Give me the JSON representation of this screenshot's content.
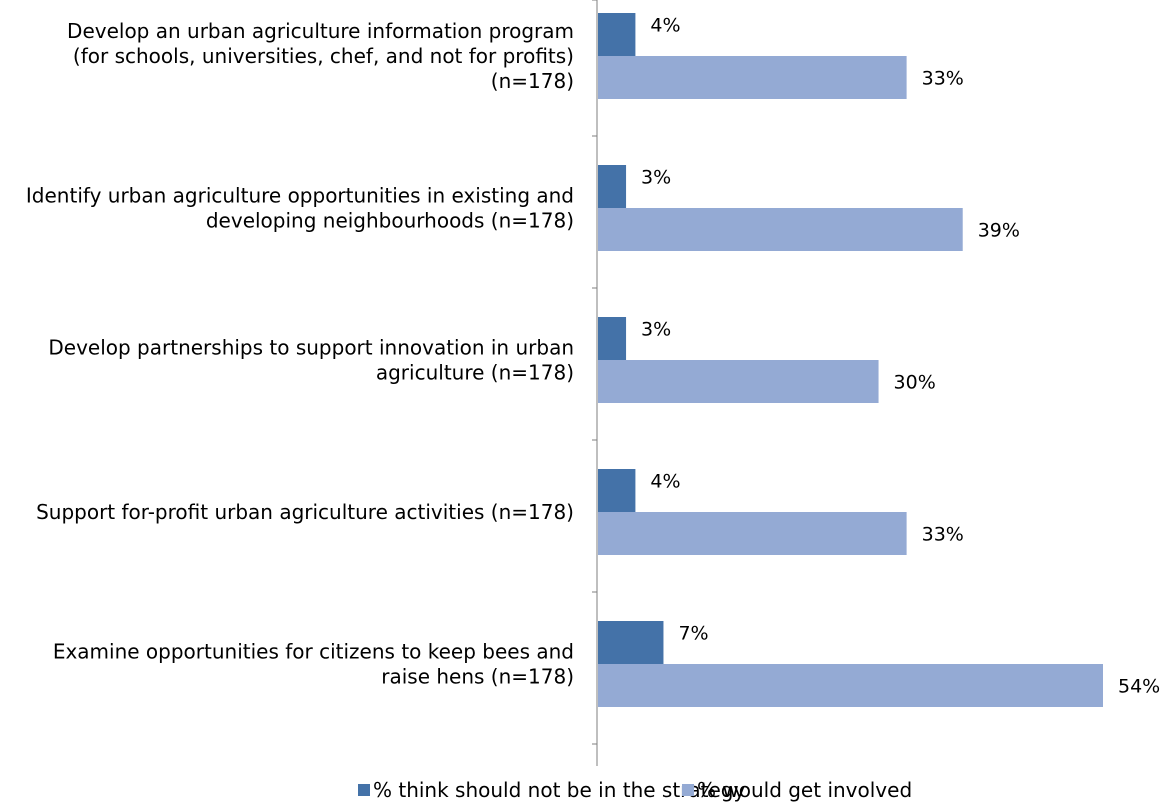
{
  "chart_data": {
    "type": "bar",
    "orientation": "horizontal",
    "categories": [
      [
        "Develop an urban agriculture information program",
        "(for schools, universities, chef, and not for profits)",
        "(n=178)"
      ],
      [
        "Identify urban agriculture opportunities in existing and",
        "developing neighbourhoods (n=178)"
      ],
      [
        "Develop partnerships to support innovation in urban",
        "agriculture (n=178)"
      ],
      [
        "Support for-profit urban agriculture activities (n=178)"
      ],
      [
        "Examine opportunities for citizens to keep bees and",
        "raise hens (n=178)"
      ]
    ],
    "series": [
      {
        "name": "% think should not be in the strategy",
        "color": "#4472a8",
        "values": [
          4,
          3,
          3,
          4,
          7
        ],
        "labels": [
          "4%",
          "3%",
          "3%",
          "4%",
          "7%"
        ]
      },
      {
        "name": "% would get involved",
        "color": "#94aad4",
        "values": [
          33,
          39,
          30,
          33,
          54
        ],
        "labels": [
          "33%",
          "39%",
          "30%",
          "33%",
          "54%"
        ]
      }
    ],
    "xlim": [
      0,
      60
    ],
    "grid": false,
    "legend_position": "bottom"
  }
}
